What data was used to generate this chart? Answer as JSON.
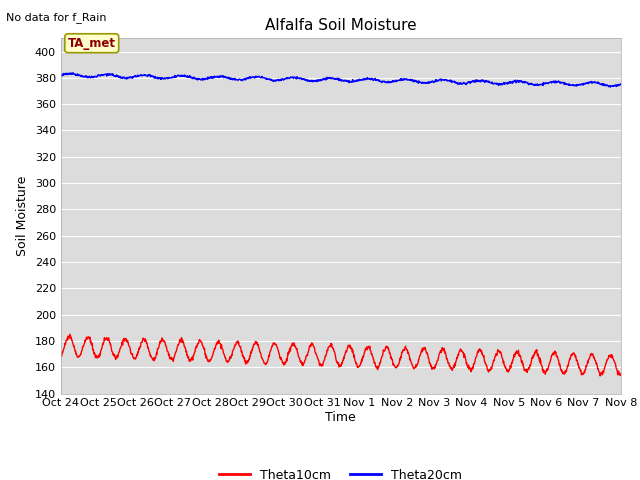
{
  "title": "Alfalfa Soil Moisture",
  "top_left_text": "No data for f_Rain",
  "ylabel": "Soil Moisture",
  "xlabel": "Time",
  "ylim": [
    140,
    410
  ],
  "yticks": [
    140,
    160,
    180,
    200,
    220,
    240,
    260,
    280,
    300,
    320,
    340,
    360,
    380,
    400
  ],
  "xtick_labels": [
    "Oct 24",
    "Oct 25",
    "Oct 26",
    "Oct 27",
    "Oct 28",
    "Oct 29",
    "Oct 30",
    "Oct 31",
    "Nov 1",
    "Nov 2",
    "Nov 3",
    "Nov 4",
    "Nov 5",
    "Nov 6",
    "Nov 7",
    "Nov 8"
  ],
  "legend_label1": "Theta10cm",
  "legend_label2": "Theta20cm",
  "line1_color": "#ff0000",
  "line2_color": "#0000ff",
  "bg_color": "#dcdcdc",
  "annotation_text": "TA_met",
  "title_fontsize": 11,
  "label_fontsize": 9,
  "tick_fontsize": 8
}
